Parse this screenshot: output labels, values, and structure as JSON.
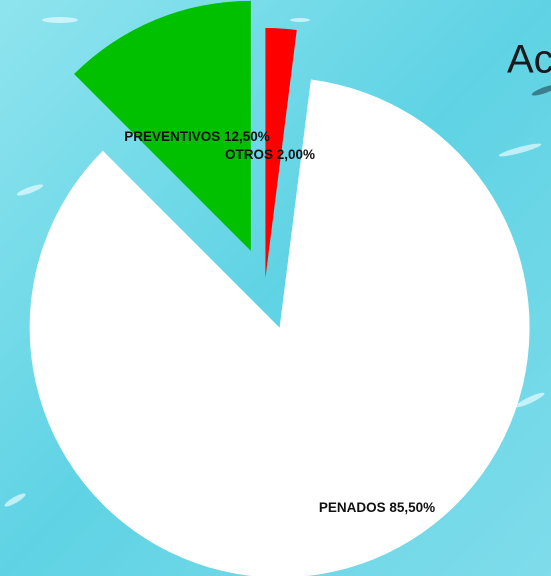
{
  "chart_data": {
    "type": "pie",
    "title": "Ac",
    "categories": [
      "OTROS",
      "PENADOS",
      "PREVENTIVOS"
    ],
    "values": [
      2.0,
      85.5,
      12.5
    ],
    "value_labels": [
      "2,00%",
      "85,50%",
      "12,50%"
    ],
    "colors": [
      "#ff0000",
      "#ffffff",
      "#00c000"
    ]
  }
}
